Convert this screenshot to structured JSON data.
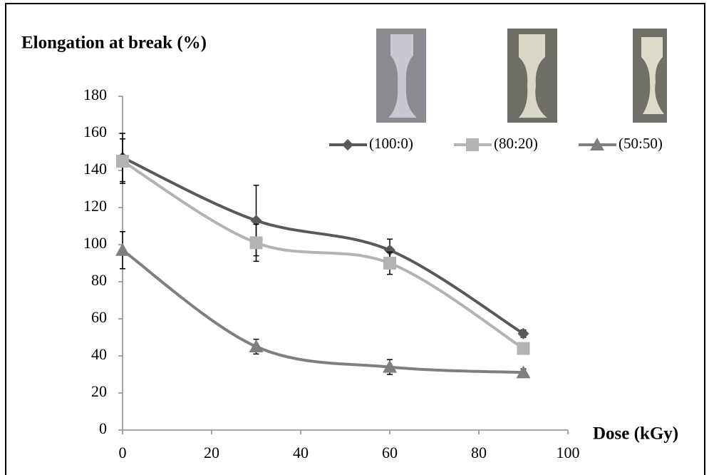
{
  "chart_data": {
    "type": "line",
    "title": "Elongation at break (%)",
    "x_label": "Dose (kGy)",
    "x": [
      0,
      30,
      60,
      90
    ],
    "xlim": [
      0,
      100
    ],
    "xticks": [
      0,
      20,
      40,
      60,
      80,
      100
    ],
    "ylim": [
      0,
      180
    ],
    "yticks": [
      0,
      20,
      40,
      60,
      80,
      100,
      120,
      140,
      160,
      180
    ],
    "legend": "top-right",
    "series": [
      {
        "name": "(100:0)",
        "color": "#595959",
        "marker": "diamond",
        "values": [
          147,
          113,
          97,
          52
        ],
        "errors": [
          13,
          19,
          6,
          2
        ]
      },
      {
        "name": "(80:20)",
        "color": "#b3b3b3",
        "marker": "square",
        "values": [
          145,
          101,
          90,
          44
        ],
        "errors": [
          12,
          10,
          6,
          2
        ]
      },
      {
        "name": "(50:50)",
        "color": "#7f7f7f",
        "marker": "triangle",
        "values": [
          97,
          45,
          34,
          31
        ],
        "errors": [
          10,
          4,
          4,
          2
        ]
      }
    ]
  }
}
